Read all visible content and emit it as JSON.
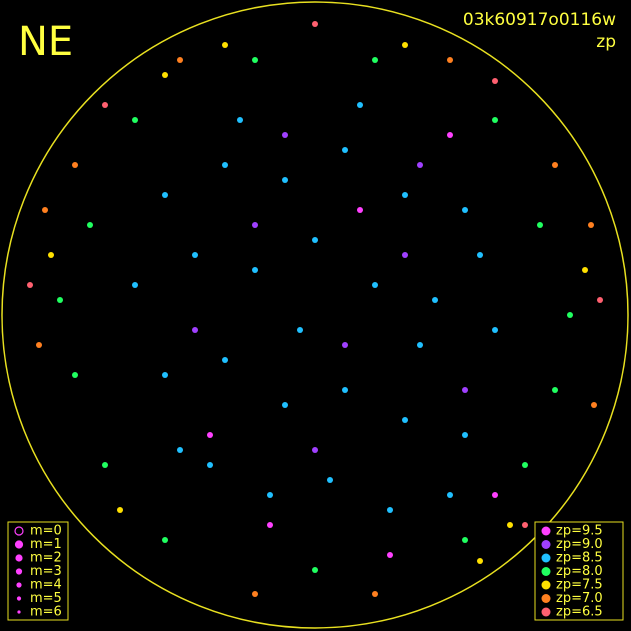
{
  "chart_data": {
    "type": "scatter",
    "title": "NE",
    "subtitle": "03k60917o0116w",
    "annotation": "zp",
    "xlim": [
      -1,
      1
    ],
    "ylim": [
      -1,
      1
    ],
    "magnitude_legend": [
      "m=0",
      "m=1",
      "m=2",
      "m=3",
      "m=4",
      "m=5",
      "m=6"
    ],
    "series": [
      {
        "name": "zp=9.5",
        "color": "#ff40ff",
        "x": [
          0.15,
          -0.35,
          0.45,
          -0.15,
          0.25,
          0.6
        ],
        "y": [
          0.35,
          -0.4,
          0.6,
          -0.7,
          -0.8,
          -0.6
        ]
      },
      {
        "name": "zp=9.0",
        "color": "#a040ff",
        "x": [
          -0.2,
          0.3,
          0.1,
          -0.4,
          0.5,
          0.0,
          -0.1,
          0.35
        ],
        "y": [
          0.3,
          0.2,
          -0.1,
          -0.05,
          -0.25,
          -0.45,
          0.6,
          0.5
        ]
      },
      {
        "name": "zp=8.5",
        "color": "#20c0ff",
        "x": [
          -0.5,
          -0.3,
          -0.1,
          0.1,
          0.3,
          0.5,
          -0.6,
          -0.4,
          -0.2,
          0,
          0.2,
          0.4,
          0.6,
          -0.5,
          -0.3,
          -0.1,
          0.1,
          0.3,
          0.5,
          -0.35,
          -0.15,
          0.05,
          0.25,
          0.45,
          -0.25,
          0.15,
          0.35,
          -0.05,
          0.55,
          -0.45
        ],
        "y": [
          0.4,
          0.5,
          0.45,
          0.55,
          0.4,
          0.35,
          0.1,
          0.2,
          0.15,
          0.25,
          0.1,
          0.05,
          -0.05,
          -0.2,
          -0.15,
          -0.3,
          -0.25,
          -0.35,
          -0.4,
          -0.5,
          -0.6,
          -0.55,
          -0.65,
          -0.6,
          0.65,
          0.7,
          -0.1,
          -0.05,
          0.2,
          -0.45
        ]
      },
      {
        "name": "zp=8.0",
        "color": "#20ff60",
        "x": [
          -0.75,
          -0.8,
          0.75,
          0.8,
          -0.6,
          0.6,
          -0.2,
          0.2,
          -0.85,
          0.85,
          -0.5,
          0.5,
          0,
          -0.7,
          0.7
        ],
        "y": [
          0.3,
          -0.2,
          0.3,
          -0.25,
          0.65,
          0.65,
          0.85,
          0.85,
          0.05,
          0.0,
          -0.75,
          -0.75,
          -0.85,
          -0.5,
          -0.5
        ]
      },
      {
        "name": "zp=7.5",
        "color": "#ffe000",
        "x": [
          -0.88,
          0.9,
          -0.65,
          0.65,
          0.3,
          -0.3,
          0.55,
          -0.5
        ],
        "y": [
          0.2,
          0.15,
          -0.65,
          -0.7,
          0.9,
          0.9,
          -0.82,
          0.8
        ]
      },
      {
        "name": "zp=7.0",
        "color": "#ff8020",
        "x": [
          -0.92,
          0.93,
          -0.8,
          0.8,
          -0.45,
          0.45,
          0.2,
          -0.2,
          0.92,
          -0.9
        ],
        "y": [
          -0.1,
          -0.3,
          0.5,
          0.5,
          0.85,
          0.85,
          -0.93,
          -0.93,
          0.3,
          0.35
        ]
      },
      {
        "name": "zp=6.5",
        "color": "#ff6070",
        "x": [
          -0.95,
          0.95,
          -0.7,
          0.7,
          0.0,
          0.6
        ],
        "y": [
          0.1,
          0.05,
          0.7,
          -0.7,
          0.97,
          0.78
        ]
      }
    ]
  }
}
